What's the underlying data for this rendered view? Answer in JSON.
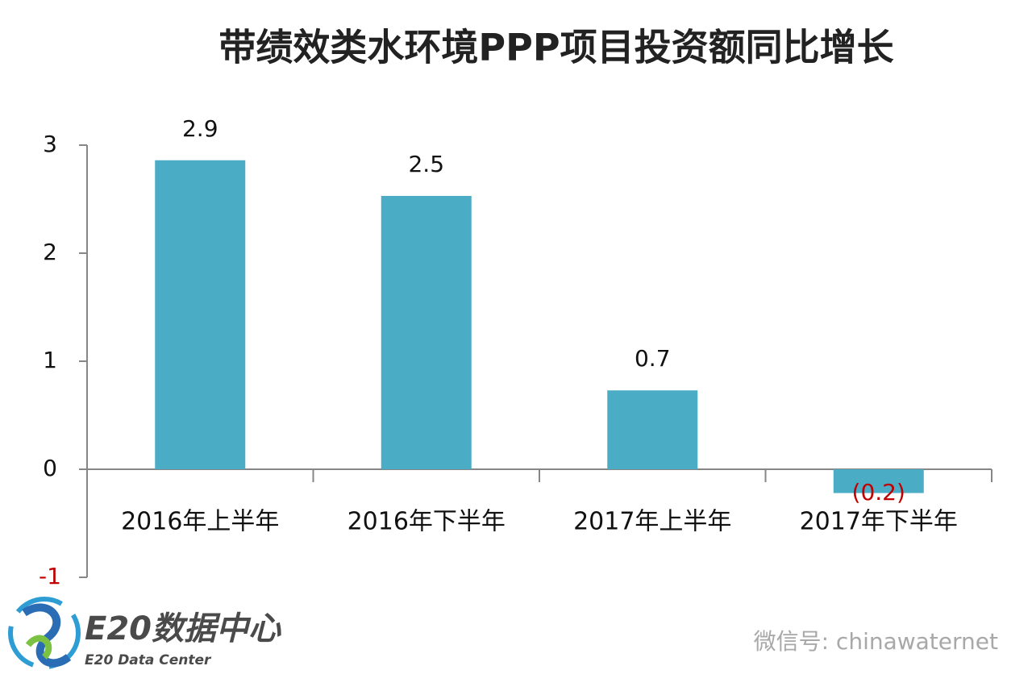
{
  "chart_data": {
    "type": "bar",
    "title": "带绩效类水环境PPP项目投资额同比增长",
    "categories": [
      "2016年上半年",
      "2016年下半年",
      "2017年上半年",
      "2017年下半年"
    ],
    "values": [
      2.86,
      2.53,
      0.73,
      -0.22
    ],
    "value_labels": [
      "2.9",
      "2.5",
      "0.7",
      "(0.2)"
    ],
    "color": "#4bacc6",
    "negative_label_color": "#c00000",
    "ylim": [
      -1,
      3
    ],
    "yticks": [
      -1,
      0,
      1,
      2,
      3
    ],
    "grid": false
  },
  "logo": {
    "name": "E20数据中心",
    "subtitle": "E20 Data Center"
  },
  "watermark": "微信号: chinawaternet"
}
